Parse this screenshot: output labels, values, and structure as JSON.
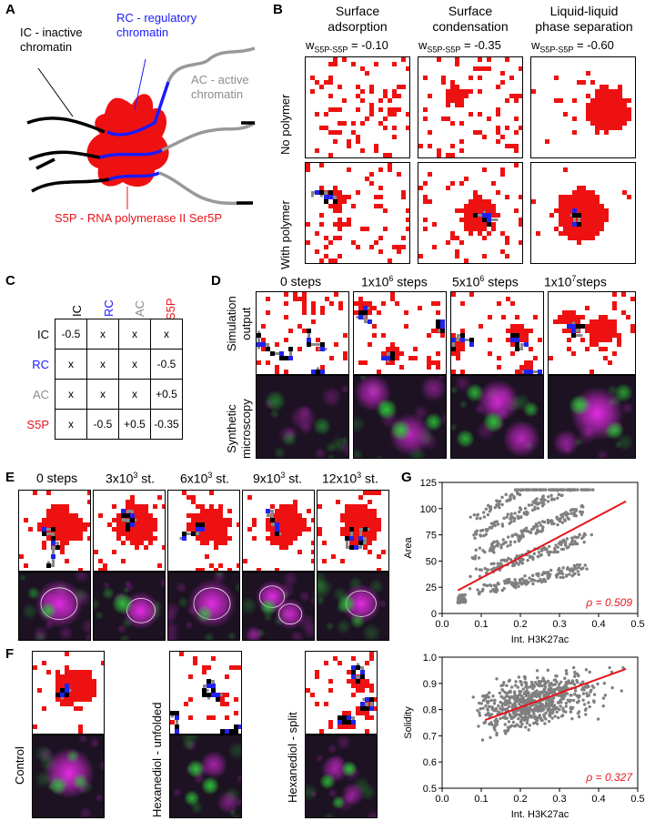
{
  "panel_labels": {
    "A": "A",
    "B": "B",
    "C": "C",
    "D": "D",
    "E": "E",
    "F": "F",
    "G": "G"
  },
  "panel_a": {
    "ic": [
      "IC - inactive",
      "chromatin"
    ],
    "rc": [
      "RC - regulatory",
      "chromatin"
    ],
    "ac": [
      "AC - active",
      "chromatin"
    ],
    "s5p": "S5P - RNA polymerase II Ser5P"
  },
  "panel_b": {
    "columns": [
      {
        "title": [
          "Surface",
          "adsorption"
        ],
        "w_prefix": "w",
        "w_sub": "S5P-S5P",
        "w_value": " = -0.10"
      },
      {
        "title": [
          "Surface",
          "condensation"
        ],
        "w_prefix": "w",
        "w_sub": "S5P-S5P",
        "w_value": " = -0.35"
      },
      {
        "title": [
          "Liquid-liquid",
          "phase separation"
        ],
        "w_prefix": "w",
        "w_sub": "S5P-S5P",
        "w_value": " = -0.60"
      }
    ],
    "rows": [
      "No polymer",
      "With polymer"
    ]
  },
  "panel_c": {
    "headers": [
      "IC",
      "RC",
      "AC",
      "S5P"
    ],
    "rows": [
      {
        "label": "IC",
        "cells": [
          "-0.5",
          "x",
          "x",
          "x"
        ]
      },
      {
        "label": "RC",
        "cells": [
          "x",
          "x",
          "x",
          "-0.5"
        ]
      },
      {
        "label": "AC",
        "cells": [
          "x",
          "x",
          "x",
          "+0.5"
        ]
      },
      {
        "label": "S5P",
        "cells": [
          "x",
          "-0.5",
          "+0.5",
          "-0.35"
        ]
      }
    ],
    "colors": {
      "IC": "#000000",
      "RC": "#1a1aff",
      "AC": "#8c8c8c",
      "S5P": "#e8141c"
    }
  },
  "panel_d": {
    "steps": [
      {
        "main": "0 steps",
        "sup": ""
      },
      {
        "main": "1x10",
        "sup": "6",
        "tail": " steps"
      },
      {
        "main": "5x10",
        "sup": "6",
        "tail": " steps"
      },
      {
        "main": "1x10",
        "sup": "7",
        "tail": "steps"
      }
    ],
    "rows": [
      [
        "Simulation",
        "output"
      ],
      [
        "Synthetic",
        "microscopy"
      ]
    ]
  },
  "panel_e": {
    "steps": [
      {
        "main": "0 steps",
        "sup": "",
        "tail": ""
      },
      {
        "main": "3x10",
        "sup": "3",
        "tail": " st."
      },
      {
        "main": "6x10",
        "sup": "3",
        "tail": " st."
      },
      {
        "main": "9x10",
        "sup": "3",
        "tail": " st."
      },
      {
        "main": "12x10",
        "sup": "3",
        "tail": " st."
      }
    ]
  },
  "panel_f": {
    "labels": [
      "Control",
      "Hexanediol - unfolded",
      "Hexanediol - split"
    ]
  },
  "chart_data": [
    {
      "type": "scatter",
      "title": "",
      "xlabel": "Int. H3K27ac",
      "ylabel": "Area",
      "xlim": [
        0.0,
        0.5
      ],
      "ylim": [
        0,
        125
      ],
      "xticks": [
        "0.0",
        "0.1",
        "0.2",
        "0.3",
        "0.4",
        "0.5"
      ],
      "yticks": [
        "0",
        "25",
        "50",
        "75",
        "100",
        "125"
      ],
      "fit_line": {
        "x": [
          0.04,
          0.47
        ],
        "y": [
          22,
          107
        ]
      },
      "annotation": "ρ = 0.509",
      "point_color": "#808080",
      "line_color": "#e8141c"
    },
    {
      "type": "scatter",
      "title": "",
      "xlabel": "Int. H3K27ac",
      "ylabel": "Solidity",
      "xlim": [
        0.0,
        0.5
      ],
      "ylim": [
        0.5,
        1.0
      ],
      "xticks": [
        "0.0",
        "0.1",
        "0.2",
        "0.3",
        "0.4",
        "0.5"
      ],
      "yticks": [
        "0.5",
        "0.6",
        "0.7",
        "0.8",
        "0.9",
        "1.0"
      ],
      "fit_line": {
        "x": [
          0.11,
          0.47
        ],
        "y": [
          0.76,
          0.955
        ]
      },
      "annotation": "ρ = 0.327",
      "point_color": "#808080",
      "line_color": "#e8141c"
    }
  ]
}
